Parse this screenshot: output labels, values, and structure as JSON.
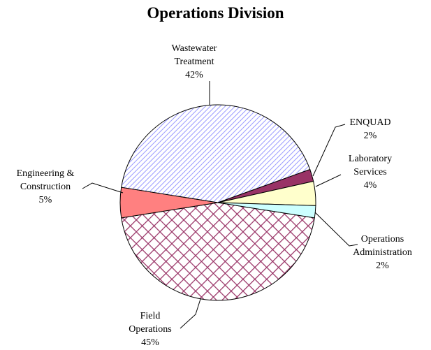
{
  "chart_data": {
    "type": "pie",
    "title": "Operations Division",
    "categories": [
      "Field Operations",
      "Engineering & Construction",
      "Wastewater Treatment",
      "ENQUAD",
      "Laboratory Services",
      "Operations Administration"
    ],
    "values": [
      45,
      5,
      42,
      2,
      4,
      2
    ],
    "value_labels": [
      "45%",
      "5%",
      "42%",
      "2%",
      "4%",
      "2%"
    ],
    "colors": [
      "#993366",
      "#ff8080",
      "#9999ff",
      "#993366",
      "#ffffcc",
      "#ccffff"
    ],
    "hatch": [
      "cross",
      null,
      "diagonal",
      null,
      null,
      null
    ]
  }
}
